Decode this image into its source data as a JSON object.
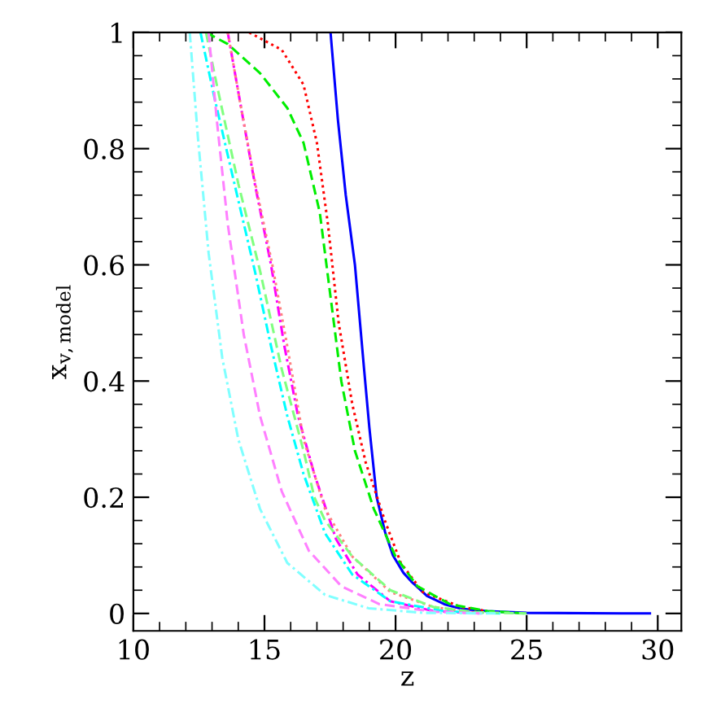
{
  "chart_data": {
    "type": "line",
    "xlabel": "z",
    "ylabel": "x$_{v,model}$",
    "xlim": [
      10,
      30.9
    ],
    "ylim": [
      -0.03,
      1
    ],
    "xticks": [
      10,
      15,
      20,
      25,
      30
    ],
    "yticks": [
      0,
      0.2,
      0.4,
      0.6,
      0.8,
      1
    ],
    "grid": false,
    "legend": false,
    "marker": "none",
    "series": [
      {
        "color": "#0000ff",
        "line_style": "solid",
        "x": [
          17.52,
          17.8,
          18.1,
          18.45,
          18.8,
          19.0,
          19.28,
          19.6,
          19.9,
          20.3,
          20.6,
          21.2,
          21.86,
          22.5,
          23.5,
          25,
          29.7
        ],
        "values": [
          1,
          0.85,
          0.72,
          0.6,
          0.42,
          0.32,
          0.2,
          0.14,
          0.1,
          0.07,
          0.055,
          0.03,
          0.016,
          0.008,
          0.004,
          0.001,
          0
        ]
      },
      {
        "color": "#ff0000",
        "line_style": "dotted",
        "x": [
          14.42,
          15.66,
          16.49,
          17.0,
          17.42,
          17.83,
          18.35,
          18.86,
          19.59,
          20.2,
          21.03,
          22.5,
          23.5
        ],
        "values": [
          1,
          0.97,
          0.91,
          0.81,
          0.67,
          0.5,
          0.36,
          0.26,
          0.16,
          0.087,
          0.037,
          0.011,
          0.004
        ]
      },
      {
        "color": "#00ee00",
        "line_style": "dashed",
        "x": [
          12.77,
          13.6,
          14.83,
          15.87,
          16.49,
          17.11,
          17.52,
          17.93,
          18.45,
          19.17,
          20.0,
          20.83,
          22.07,
          23.5,
          25
        ],
        "values": [
          1,
          0.98,
          0.93,
          0.87,
          0.81,
          0.69,
          0.545,
          0.4,
          0.28,
          0.18,
          0.098,
          0.047,
          0.016,
          0.004,
          0
        ]
      },
      {
        "color": "#ff00ff",
        "line_style": "dashdot",
        "x": [
          13.6,
          14.11,
          14.63,
          15.25,
          15.76,
          16.28,
          16.9,
          17.73,
          18.55,
          19.8,
          21.45,
          23.3
        ],
        "values": [
          1,
          0.87,
          0.74,
          0.6,
          0.46,
          0.34,
          0.24,
          0.128,
          0.067,
          0.021,
          0.004,
          0
        ]
      },
      {
        "color": "#00ffff",
        "line_style": "dashdot",
        "x": [
          12.56,
          13.08,
          13.8,
          14.63,
          15.25,
          15.87,
          16.49,
          17.31,
          18.35,
          19.8,
          21.86,
          24
        ],
        "values": [
          1,
          0.89,
          0.75,
          0.59,
          0.46,
          0.34,
          0.24,
          0.138,
          0.067,
          0.021,
          0.004,
          0
        ]
      },
      {
        "color": "#ff8080",
        "line_style": "dotted",
        "x": [
          13.6,
          14.11,
          14.65,
          15.3,
          15.87,
          16.49,
          17.31,
          18.35,
          19.8,
          21.45,
          23.1
        ],
        "values": [
          1,
          0.87,
          0.74,
          0.6,
          0.46,
          0.3,
          0.18,
          0.098,
          0.037,
          0.011,
          0.001
        ]
      },
      {
        "color": "#80ff80",
        "line_style": "dashed",
        "x": [
          12.77,
          13.18,
          14.0,
          14.83,
          15.66,
          16.49,
          16.9,
          17.31,
          18.35,
          19.8,
          21.45,
          23.1,
          25
        ],
        "values": [
          1,
          0.91,
          0.74,
          0.59,
          0.42,
          0.28,
          0.2,
          0.16,
          0.098,
          0.04,
          0.011,
          0.002,
          0
        ]
      },
      {
        "color": "#ff80ff",
        "line_style": "dashed",
        "x": [
          12.87,
          13.18,
          13.6,
          14.21,
          14.83,
          15.66,
          16.69,
          17.93,
          19.38,
          21.45,
          23.3
        ],
        "values": [
          1,
          0.85,
          0.67,
          0.48,
          0.34,
          0.21,
          0.108,
          0.047,
          0.016,
          0.003,
          0
        ]
      },
      {
        "color": "#80ffff",
        "line_style": "dashdot",
        "x": [
          12.15,
          12.46,
          12.87,
          13.39,
          14.0,
          14.83,
          15.87,
          17.31,
          18.97,
          21.03,
          24
        ],
        "values": [
          1,
          0.82,
          0.62,
          0.44,
          0.3,
          0.18,
          0.087,
          0.032,
          0.009,
          0.001,
          0
        ]
      }
    ]
  }
}
